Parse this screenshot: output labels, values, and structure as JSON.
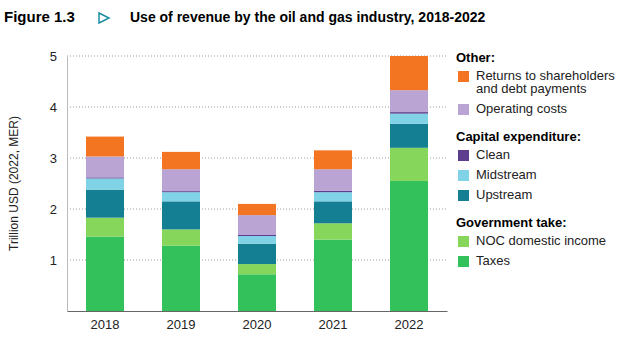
{
  "chart_data": {
    "type": "bar",
    "stacked": true,
    "figure_label": "Figure 1.3",
    "title": "Use of revenue by the oil and gas industry, 2018-2022",
    "y_label": "Trillion USD (2022, MER)",
    "categories": [
      "2018",
      "2019",
      "2020",
      "2021",
      "2022"
    ],
    "series": [
      {
        "name": "Taxes",
        "color": "#33c15b",
        "values": [
          1.46,
          1.28,
          0.72,
          1.4,
          2.55
        ]
      },
      {
        "name": "NOC domestic income",
        "color": "#86d65c",
        "values": [
          0.37,
          0.32,
          0.2,
          0.32,
          0.65
        ]
      },
      {
        "name": "Upstream",
        "color": "#147e92",
        "values": [
          0.55,
          0.55,
          0.4,
          0.43,
          0.47
        ]
      },
      {
        "name": "Midstream",
        "color": "#80d2e6",
        "values": [
          0.22,
          0.18,
          0.15,
          0.18,
          0.2
        ]
      },
      {
        "name": "Clean",
        "color": "#5d3d8e",
        "values": [
          0.02,
          0.02,
          0.02,
          0.03,
          0.03
        ]
      },
      {
        "name": "Operating costs",
        "color": "#b9a4d4",
        "values": [
          0.41,
          0.43,
          0.39,
          0.42,
          0.43
        ]
      },
      {
        "name": "Returns to shareholders and debt payments",
        "color": "#f47521",
        "values": [
          0.39,
          0.34,
          0.22,
          0.37,
          0.67
        ]
      }
    ],
    "legend_groups": [
      {
        "title": "Other:",
        "series": [
          "Returns to shareholders and debt payments",
          "Operating costs"
        ]
      },
      {
        "title": "Capital expenditure:",
        "series": [
          "Clean",
          "Midstream",
          "Upstream"
        ]
      },
      {
        "title": "Government take:",
        "series": [
          "NOC domestic income",
          "Taxes"
        ]
      }
    ],
    "ylim": [
      0,
      5
    ],
    "yticks": [
      1,
      2,
      3,
      4,
      5
    ],
    "grid": true,
    "legend": "right"
  }
}
